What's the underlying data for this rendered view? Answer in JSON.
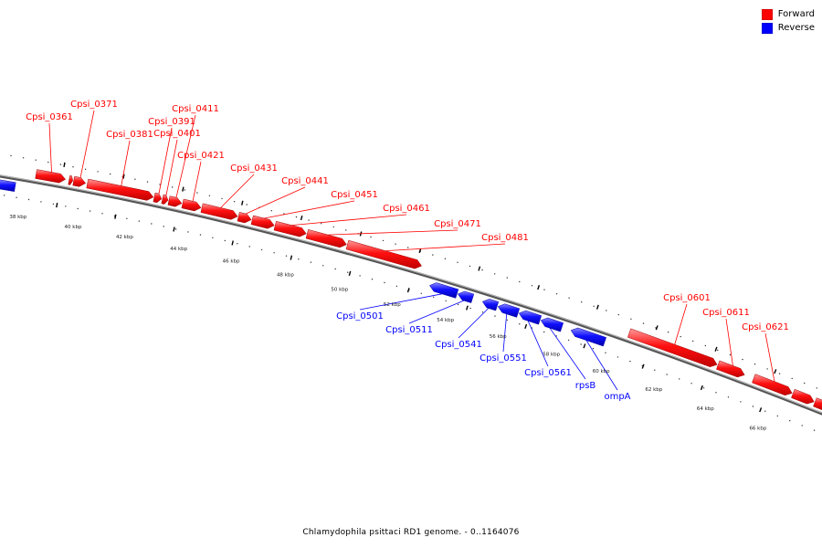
{
  "legend": {
    "forward_label": "Forward",
    "reverse_label": "Reverse",
    "forward_color": "#ff0000",
    "reverse_color": "#0000ff"
  },
  "footer": {
    "title": "Chlamydophila psittaci RD1 genome. - 0..1164076"
  },
  "genes": [
    {
      "name": "Cpsi_0361",
      "strand": "forward"
    },
    {
      "name": "Cpsi_0371",
      "strand": "forward"
    },
    {
      "name": "Cpsi_0381",
      "strand": "forward"
    },
    {
      "name": "Cpsi_0391",
      "strand": "forward"
    },
    {
      "name": "Cpsi_0401",
      "strand": "forward"
    },
    {
      "name": "Cpsi_0411",
      "strand": "forward"
    },
    {
      "name": "Cpsi_0421",
      "strand": "forward"
    },
    {
      "name": "Cpsi_0431",
      "strand": "forward"
    },
    {
      "name": "Cpsi_0441",
      "strand": "forward"
    },
    {
      "name": "Cpsi_0451",
      "strand": "forward"
    },
    {
      "name": "Cpsi_0461",
      "strand": "forward"
    },
    {
      "name": "Cpsi_0471",
      "strand": "forward"
    },
    {
      "name": "Cpsi_0481",
      "strand": "forward"
    },
    {
      "name": "Cpsi_0501",
      "strand": "reverse"
    },
    {
      "name": "Cpsi_0511",
      "strand": "reverse"
    },
    {
      "name": "Cpsi_0541",
      "strand": "reverse"
    },
    {
      "name": "Cpsi_0551",
      "strand": "reverse"
    },
    {
      "name": "Cpsi_0561",
      "strand": "reverse"
    },
    {
      "name": "rpsB",
      "strand": "reverse"
    },
    {
      "name": "ompA",
      "strand": "reverse"
    },
    {
      "name": "Cpsi_0601",
      "strand": "forward"
    },
    {
      "name": "Cpsi_0611",
      "strand": "forward"
    },
    {
      "name": "Cpsi_0621",
      "strand": "forward"
    }
  ],
  "scale_labels": [
    "38 kbp",
    "40 kbp",
    "42 kbp",
    "44 kbp",
    "46 kbp",
    "48 kbp",
    "50 kbp",
    "52 kbp",
    "54 kbp",
    "56 kbp",
    "58 kbp",
    "60 kbp",
    "62 kbp",
    "64 kbp",
    "66 kbp"
  ]
}
